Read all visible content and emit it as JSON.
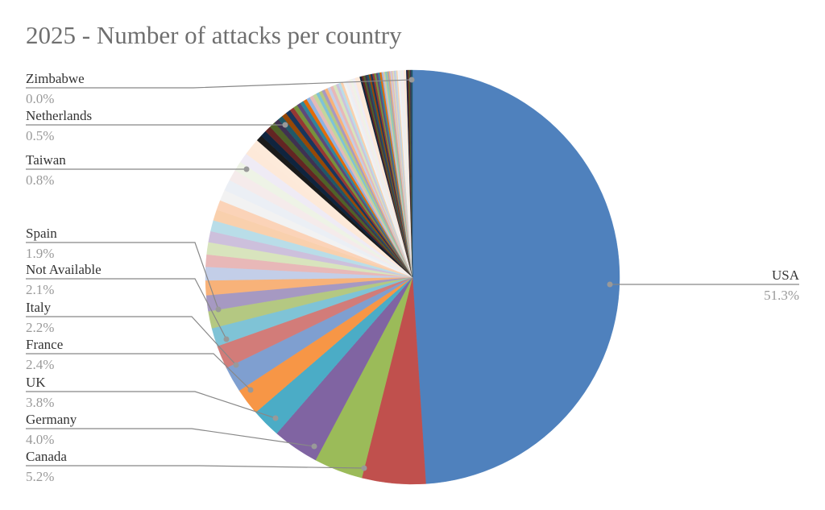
{
  "chart_data": {
    "type": "pie",
    "title": "2025 - Number of attacks per country",
    "labeled_slices": [
      {
        "name": "USA",
        "value": 51.3,
        "pct_label": "51.3%",
        "color": "#4f81bd"
      },
      {
        "name": "Canada",
        "value": 5.2,
        "pct_label": "5.2%",
        "color": "#c0504d"
      },
      {
        "name": "Germany",
        "value": 4.0,
        "pct_label": "4.0%",
        "color": "#9bbb59"
      },
      {
        "name": "UK",
        "value": 3.8,
        "pct_label": "3.8%",
        "color": "#8064a2"
      },
      {
        "name": "France",
        "value": 2.4,
        "pct_label": "2.4%",
        "color": "#4bacc6"
      },
      {
        "name": "Italy",
        "value": 2.2,
        "pct_label": "2.2%",
        "color": "#f79646"
      },
      {
        "name": "Not Available",
        "value": 2.1,
        "pct_label": "2.1%",
        "color": "#7f9fd0"
      },
      {
        "name": "Spain",
        "value": 1.9,
        "pct_label": "1.9%",
        "color": "#d27c79"
      },
      {
        "name": "Taiwan",
        "value": 0.8,
        "pct_label": "0.8%",
        "color": "#fbd3b8"
      },
      {
        "name": "Netherlands",
        "value": 0.5,
        "pct_label": "0.5%",
        "color": "#1a1a1a"
      },
      {
        "name": "Zimbabwe",
        "value": 0.0,
        "pct_label": "0.0%",
        "color": "#7c5ea8"
      }
    ],
    "unlabeled_slices": [
      1.5,
      1.4,
      1.3,
      1.2,
      1.1,
      1.0,
      1.0,
      0.9,
      0.9,
      0.9,
      0.9,
      0.9,
      0.9,
      0.8,
      0.8,
      0.7,
      0.7,
      0.5,
      0.5,
      0.5,
      0.4,
      0.4,
      0.4,
      0.4,
      0.35,
      0.35,
      0.3,
      0.3,
      0.3,
      0.3,
      0.3,
      0.3,
      0.25,
      0.25,
      0.25,
      0.25,
      0.25,
      0.25,
      0.25,
      0.2,
      0.2,
      0.2,
      0.2,
      0.2,
      0.2,
      0.2,
      0.2,
      0.2,
      0.2,
      0.15,
      0.15,
      0.15,
      0.15,
      0.15,
      0.15,
      0.15,
      0.15,
      0.15,
      0.15,
      0.15,
      0.15,
      0.1,
      0.1,
      0.1,
      0.1,
      0.1,
      0.1,
      0.1,
      0.1,
      0.1,
      0.1,
      0.1,
      0.1,
      0.1,
      0.1,
      0.1,
      0.1,
      0.1,
      0.1,
      0.1,
      0.1,
      0.1,
      0.1,
      0.1,
      0.1,
      0.1
    ],
    "palette": [
      "#7fc3d6",
      "#b4c882",
      "#a699c2",
      "#f8b279",
      "#c3cee8",
      "#e8b8b8",
      "#d8e4bd",
      "#cdc0dc",
      "#b9dde8",
      "#f9d0ad",
      "#f2f2f2",
      "#ebeff5",
      "#f5ebeb",
      "#eef3e6",
      "#efebf5",
      "#fde9d9",
      "#fdeada",
      "#0f243e",
      "#632523",
      "#4f6228",
      "#3f3151",
      "#205867",
      "#974806",
      "#17365d",
      "#953734",
      "#76923c",
      "#5f497a",
      "#31859b",
      "#e36c09",
      "#8db3e2",
      "#e5b9b7",
      "#c3d69b"
    ],
    "legend": "none; labels placed outside with leader lines",
    "start_angle_deg": 0,
    "direction": "clockwise"
  }
}
